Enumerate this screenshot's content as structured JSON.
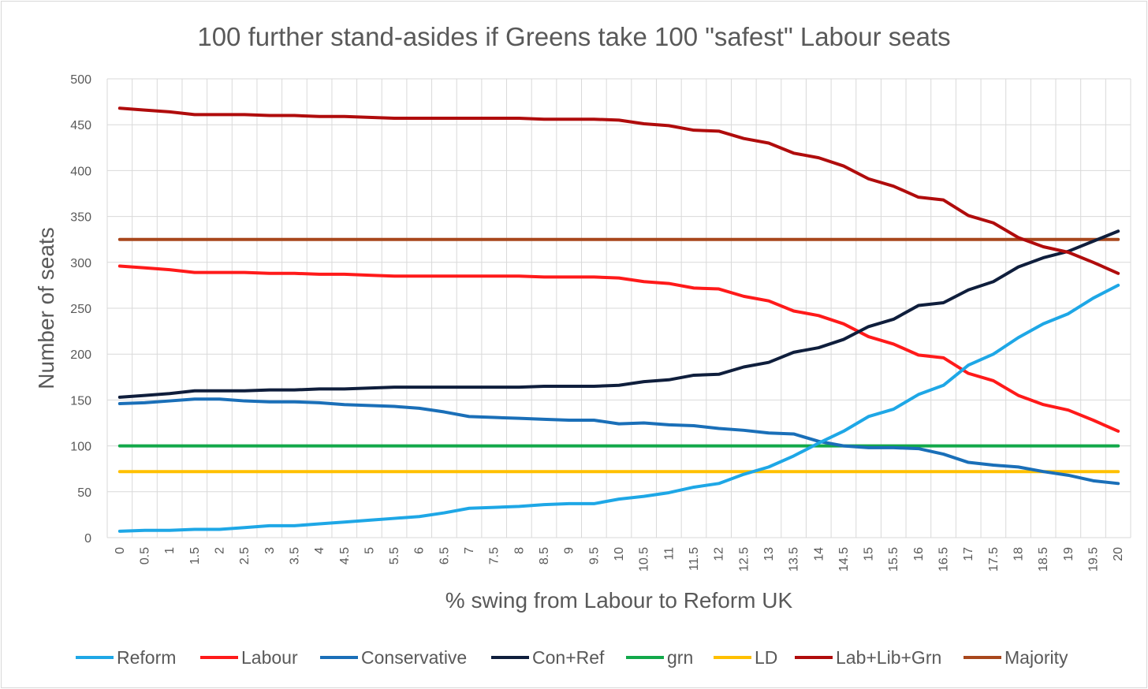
{
  "chart_data": {
    "type": "line",
    "title": "100 further stand-asides if Greens take 100 \"safest\" Labour seats",
    "xlabel": "% swing from Labour to Reform UK",
    "ylabel": "Number of seats",
    "ylim": [
      0,
      500
    ],
    "yticks": [
      0,
      50,
      100,
      150,
      200,
      250,
      300,
      350,
      400,
      450,
      500
    ],
    "grid": true,
    "legend_position": "bottom",
    "categories": [
      "0",
      "0.5",
      "1",
      "1.5",
      "2",
      "2.5",
      "3",
      "3.5",
      "4",
      "4.5",
      "5",
      "5.5",
      "6",
      "6.5",
      "7",
      "7.5",
      "8",
      "8.5",
      "9",
      "9.5",
      "10",
      "10.5",
      "11",
      "11.5",
      "12",
      "12.5",
      "13",
      "13.5",
      "14",
      "14.5",
      "15",
      "15.5",
      "16",
      "16.5",
      "17",
      "17.5",
      "18",
      "18.5",
      "19",
      "19.5",
      "20"
    ],
    "series": [
      {
        "name": "Reform",
        "color": "#1ea7e6",
        "values": [
          7,
          8,
          8,
          9,
          9,
          11,
          13,
          13,
          15,
          17,
          19,
          21,
          23,
          27,
          32,
          33,
          34,
          36,
          37,
          37,
          42,
          45,
          49,
          55,
          59,
          69,
          77,
          89,
          103,
          116,
          132,
          140,
          156,
          166,
          188,
          200,
          218,
          233,
          244,
          261,
          275
        ]
      },
      {
        "name": "Labour",
        "color": "#ff1a1a",
        "values": [
          296,
          294,
          292,
          289,
          289,
          289,
          288,
          288,
          287,
          287,
          286,
          285,
          285,
          285,
          285,
          285,
          285,
          284,
          284,
          284,
          283,
          279,
          277,
          272,
          271,
          263,
          258,
          247,
          242,
          233,
          219,
          211,
          199,
          196,
          179,
          171,
          155,
          145,
          139,
          128,
          116
        ]
      },
      {
        "name": "Conservative",
        "color": "#1a6fb8",
        "values": [
          146,
          147,
          149,
          151,
          151,
          149,
          148,
          148,
          147,
          145,
          144,
          143,
          141,
          137,
          132,
          131,
          130,
          129,
          128,
          128,
          124,
          125,
          123,
          122,
          119,
          117,
          114,
          113,
          105,
          100,
          98,
          98,
          97,
          91,
          82,
          79,
          77,
          72,
          68,
          62,
          59
        ]
      },
      {
        "name": "Con+Ref",
        "color": "#0f1e3c",
        "values": [
          153,
          155,
          157,
          160,
          160,
          160,
          161,
          161,
          162,
          162,
          163,
          164,
          164,
          164,
          164,
          164,
          164,
          165,
          165,
          165,
          166,
          170,
          172,
          177,
          178,
          186,
          191,
          202,
          207,
          216,
          230,
          238,
          253,
          256,
          270,
          279,
          295,
          305,
          312,
          323,
          334
        ]
      },
      {
        "name": "grn",
        "color": "#12a84a",
        "values": [
          100,
          100,
          100,
          100,
          100,
          100,
          100,
          100,
          100,
          100,
          100,
          100,
          100,
          100,
          100,
          100,
          100,
          100,
          100,
          100,
          100,
          100,
          100,
          100,
          100,
          100,
          100,
          100,
          100,
          100,
          100,
          100,
          100,
          100,
          100,
          100,
          100,
          100,
          100,
          100,
          100
        ]
      },
      {
        "name": "LD",
        "color": "#ffc000",
        "values": [
          72,
          72,
          72,
          72,
          72,
          72,
          72,
          72,
          72,
          72,
          72,
          72,
          72,
          72,
          72,
          72,
          72,
          72,
          72,
          72,
          72,
          72,
          72,
          72,
          72,
          72,
          72,
          72,
          72,
          72,
          72,
          72,
          72,
          72,
          72,
          72,
          72,
          72,
          72,
          72,
          72
        ]
      },
      {
        "name": "Lab+Lib+Grn",
        "color": "#b00c0c",
        "values": [
          468,
          466,
          464,
          461,
          461,
          461,
          460,
          460,
          459,
          459,
          458,
          457,
          457,
          457,
          457,
          457,
          457,
          456,
          456,
          456,
          455,
          451,
          449,
          444,
          443,
          435,
          430,
          419,
          414,
          405,
          391,
          383,
          371,
          368,
          351,
          343,
          327,
          317,
          311,
          300,
          288
        ]
      },
      {
        "name": "Majority",
        "color": "#a8471c",
        "values": [
          325,
          325,
          325,
          325,
          325,
          325,
          325,
          325,
          325,
          325,
          325,
          325,
          325,
          325,
          325,
          325,
          325,
          325,
          325,
          325,
          325,
          325,
          325,
          325,
          325,
          325,
          325,
          325,
          325,
          325,
          325,
          325,
          325,
          325,
          325,
          325,
          325,
          325,
          325,
          325,
          325
        ]
      }
    ]
  }
}
